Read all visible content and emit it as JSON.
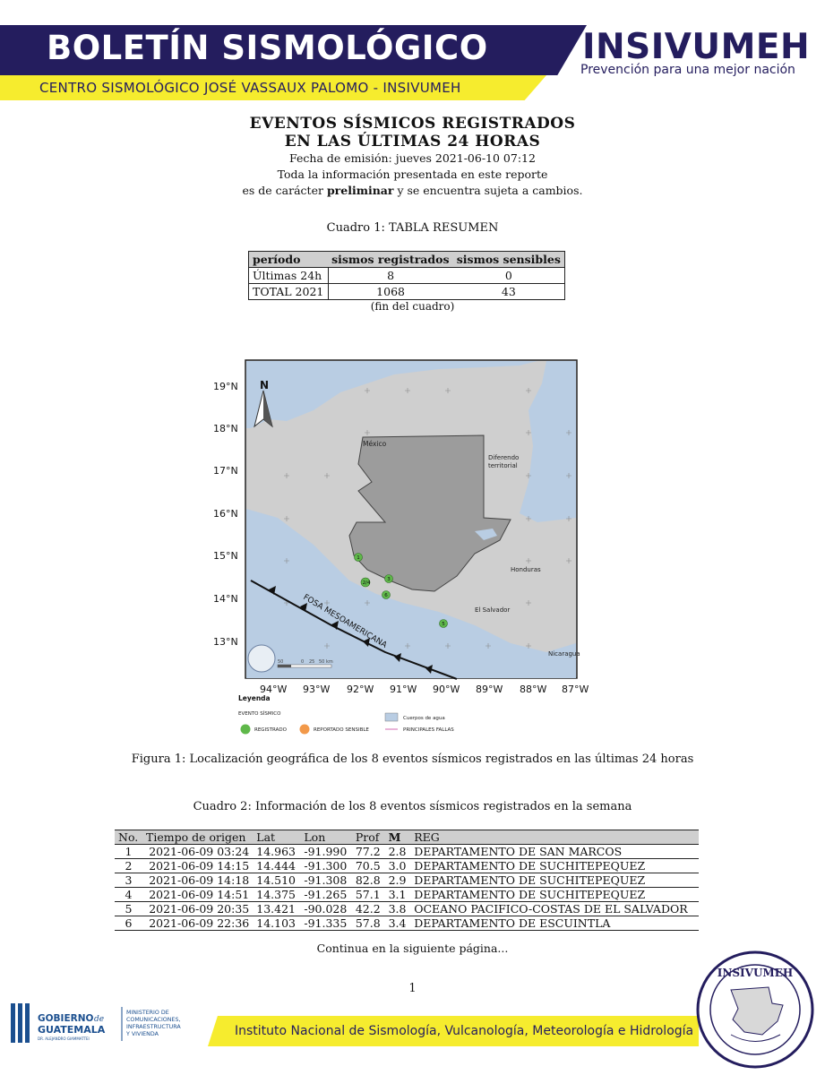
{
  "header": {
    "title": "BOLETÍN SISMOLÓGICO",
    "subtitle": "CENTRO SISMOLÓGICO JOSÉ VASSAUX PALOMO - INSIVUMEH",
    "logo_name": "INSIVUMEH",
    "logo_slogan": "Prevención para una mejor nación",
    "colors": {
      "navy": "#241d5e",
      "yellow": "#f6ec2e"
    }
  },
  "report": {
    "title_line1": "EVENTOS SÍSMICOS REGISTRADOS",
    "title_line2": "EN LAS ÚLTIMAS 24 HORAS",
    "emission": "Fecha de emisión: jueves 2021-06-10 07:12",
    "note_line1": "Toda la información presentada en este reporte",
    "note_pre": "es de carácter ",
    "note_bold": "preliminar",
    "note_post": " y se encuentra sujeta a cambios."
  },
  "summary_table": {
    "caption": "Cuadro 1: TABLA RESUMEN",
    "headers": [
      "período",
      "sismos registrados",
      "sismos sensibles"
    ],
    "rows": [
      [
        "Últimas 24h",
        "8",
        "0"
      ],
      [
        "TOTAL 2021",
        "1068",
        "43"
      ]
    ],
    "end_note": "(fin del cuadro)"
  },
  "map": {
    "lat_labels": [
      "19°N",
      "18°N",
      "17°N",
      "16°N",
      "15°N",
      "14°N",
      "13°N"
    ],
    "lon_labels": [
      "94°W",
      "93°W",
      "92°W",
      "91°W",
      "90°W",
      "89°W",
      "88°W",
      "87°W"
    ],
    "north": "N",
    "place_labels": {
      "mexico": "México",
      "diferendo_1": "Diferendo",
      "diferendo_2": "territorial",
      "honduras": "Honduras",
      "el_salvador": "El Salvador",
      "nicaragua": "Nicaragua",
      "fosa": "FOSA MESOAMERICANA"
    },
    "markers": [
      "1",
      "2/4",
      "3",
      "6",
      "5"
    ],
    "scale_labels": [
      "50",
      "0",
      "25",
      "50 km"
    ],
    "legend": {
      "title": "Leyenda",
      "section": "EVENTO SÍSMICO",
      "registrado": "REGISTRADO",
      "sensible": "REPORTADO SENSIBLE",
      "agua": "Cuerpos de agua",
      "fallas": "PRINCIPALES FALLAS"
    },
    "colors": {
      "registrado": "#5fb84a",
      "sensible": "#f2994a",
      "water": "#b9cde3",
      "land": "#c8c8c8",
      "guatemala": "#9c9c9c"
    },
    "caption": "Figura 1: Localización geográfica de los 8 eventos sísmicos registrados en las últimas 24 horas"
  },
  "events_table": {
    "caption": "Cuadro 2: Información de los 8 eventos sísmicos registrados en la semana",
    "headers": [
      "No.",
      "Tiempo de origen",
      "Lat",
      "Lon",
      "Prof",
      "M",
      "REG"
    ],
    "rows": [
      [
        "1",
        "2021-06-09 03:24",
        "14.963",
        "-91.990",
        "77.2",
        "2.8",
        "DEPARTAMENTO DE SAN MARCOS"
      ],
      [
        "2",
        "2021-06-09 14:15",
        "14.444",
        "-91.300",
        "70.5",
        "3.0",
        "DEPARTAMENTO DE SUCHITEPEQUEZ"
      ],
      [
        "3",
        "2021-06-09 14:18",
        "14.510",
        "-91.308",
        "82.8",
        "2.9",
        "DEPARTAMENTO DE SUCHITEPEQUEZ"
      ],
      [
        "4",
        "2021-06-09 14:51",
        "14.375",
        "-91.265",
        "57.1",
        "3.1",
        "DEPARTAMENTO DE SUCHITEPEQUEZ"
      ],
      [
        "5",
        "2021-06-09 20:35",
        "13.421",
        "-90.028",
        "42.2",
        "3.8",
        "OCEANO PACIFICO-COSTAS DE EL SALVADOR"
      ],
      [
        "6",
        "2021-06-09 22:36",
        "14.103",
        "-91.335",
        "57.8",
        "3.4",
        "DEPARTAMENTO DE ESCUINTLA"
      ]
    ],
    "continues": "Continua en la siguiente página..."
  },
  "footer": {
    "page_number": "1",
    "institute": "Instituto Nacional de Sismología, Vulcanología, Meteorología e Hidrología",
    "gob_line1": "GOBIERNO",
    "gob_de": "de",
    "gob_line2": "GUATEMALA",
    "gob_line3": "DR. ALEJANDRO GIAMMATTEI",
    "ministry": [
      "MINISTERIO DE",
      "COMUNICACIONES,",
      "INFRAESTRUCTURA",
      "Y VIVIENDA"
    ],
    "seal_name": "INSIVUMEH"
  }
}
